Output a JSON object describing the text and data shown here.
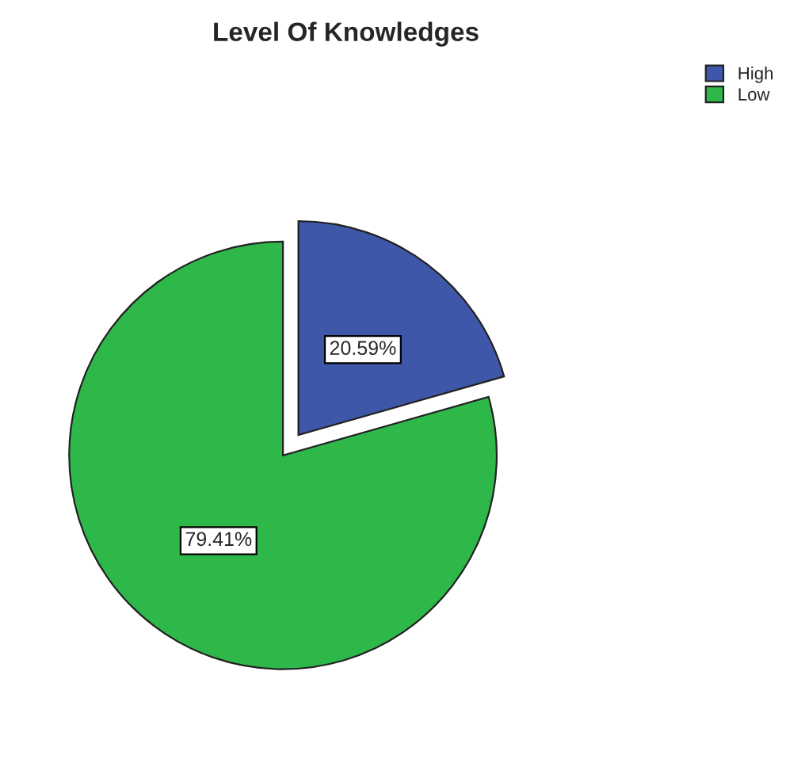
{
  "chart_data": {
    "type": "pie",
    "title": "Level Of Knowledges",
    "categories": [
      "High",
      "Low"
    ],
    "values": [
      20.59,
      79.41
    ],
    "colors": [
      "#3f57a8",
      "#2fb84a"
    ],
    "value_labels": [
      "20.59%",
      "79.41%"
    ],
    "legend": "top right"
  }
}
